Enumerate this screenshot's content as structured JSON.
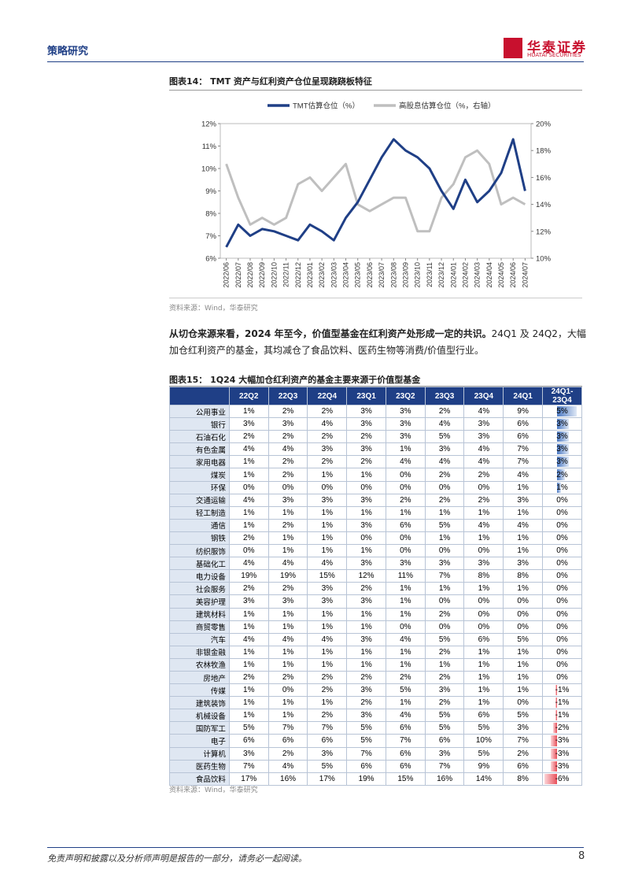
{
  "header": {
    "section": "策略研究",
    "logo_cn": "华泰证券",
    "logo_en": "HUATAI SECURITIES"
  },
  "chart_data": {
    "type": "line",
    "title": "图表14： TMT 资产与红利资产仓位呈现跷跷板特征",
    "categories": [
      "2022/06",
      "2022/07",
      "2022/08",
      "2022/09",
      "2022/10",
      "2022/11",
      "2022/12",
      "2023/01",
      "2023/02",
      "2023/03",
      "2023/04",
      "2023/05",
      "2023/06",
      "2023/07",
      "2023/08",
      "2023/09",
      "2023/10",
      "2023/11",
      "2023/12",
      "2024/01",
      "2024/02",
      "2024/03",
      "2024/04",
      "2024/05",
      "2024/06",
      "2024/07"
    ],
    "series": [
      {
        "name": "TMT估算仓位（%）",
        "color": "#1f3f86",
        "values": [
          6.5,
          7.5,
          7.0,
          7.3,
          7.2,
          7.0,
          6.8,
          7.5,
          7.2,
          6.8,
          7.8,
          8.5,
          9.5,
          10.5,
          11.3,
          10.8,
          10.5,
          10.0,
          9.0,
          8.2,
          9.5,
          8.5,
          9.0,
          9.8,
          11.3,
          9.0
        ]
      },
      {
        "name": "高股息估算仓位（%，右轴）",
        "color": "#bfbfbf",
        "axis": "y2",
        "values": [
          17,
          14.5,
          12.5,
          13,
          12.5,
          13,
          15.5,
          16,
          15,
          16,
          17,
          14,
          13.5,
          14,
          14.5,
          14.5,
          12,
          12,
          14.5,
          15.5,
          17.5,
          18,
          17,
          14,
          14.5,
          14
        ]
      }
    ],
    "ylim": [
      6,
      12
    ],
    "yticks": [
      {
        "value": 6,
        "label": "6%"
      },
      {
        "value": 7,
        "label": "7%"
      },
      {
        "value": 8,
        "label": "8%"
      },
      {
        "value": 9,
        "label": "9%"
      },
      {
        "value": 10,
        "label": "10%"
      },
      {
        "value": 11,
        "label": "11%"
      },
      {
        "value": 12,
        "label": "12%"
      }
    ],
    "y2lim": [
      10,
      20
    ],
    "y2ticks": [
      {
        "value": 10,
        "label": "10%"
      },
      {
        "value": 12,
        "label": "12%"
      },
      {
        "value": 14,
        "label": "14%"
      },
      {
        "value": 16,
        "label": "16%"
      },
      {
        "value": 18,
        "label": "18%"
      },
      {
        "value": 20,
        "label": "20%"
      }
    ],
    "legend": "top",
    "source": "资料来源：Wind，华泰研究"
  },
  "paragraph": {
    "lead": "从切仓来源来看，2024 年至今，价值型基金在红利资产处形成一定的共识。",
    "body": "24Q1 及 24Q2，大幅加仓红利资产的基金，其均减仓了食品饮料、医药生物等消费/价值型行业。"
  },
  "table": {
    "title": "图表15： 1Q24 大幅加仓红利资产的基金主要来源于价值型基金",
    "columns": [
      "22Q2",
      "22Q3",
      "22Q4",
      "23Q1",
      "23Q2",
      "23Q3",
      "23Q4",
      "24Q1",
      "24Q1-23Q4"
    ],
    "rows": [
      [
        "公用事业",
        "1%",
        "2%",
        "2%",
        "3%",
        "3%",
        "2%",
        "4%",
        "9%",
        "5%"
      ],
      [
        "银行",
        "3%",
        "3%",
        "4%",
        "3%",
        "3%",
        "4%",
        "3%",
        "6%",
        "3%"
      ],
      [
        "石油石化",
        "2%",
        "2%",
        "2%",
        "2%",
        "3%",
        "5%",
        "3%",
        "6%",
        "3%"
      ],
      [
        "有色金属",
        "4%",
        "4%",
        "3%",
        "3%",
        "1%",
        "3%",
        "4%",
        "7%",
        "3%"
      ],
      [
        "家用电器",
        "1%",
        "2%",
        "2%",
        "2%",
        "4%",
        "4%",
        "4%",
        "7%",
        "3%"
      ],
      [
        "煤炭",
        "1%",
        "2%",
        "1%",
        "1%",
        "0%",
        "2%",
        "2%",
        "4%",
        "2%"
      ],
      [
        "环保",
        "0%",
        "0%",
        "0%",
        "0%",
        "0%",
        "0%",
        "0%",
        "1%",
        "1%"
      ],
      [
        "交通运输",
        "4%",
        "3%",
        "3%",
        "3%",
        "2%",
        "2%",
        "2%",
        "3%",
        "0%"
      ],
      [
        "轻工制造",
        "1%",
        "1%",
        "1%",
        "1%",
        "1%",
        "1%",
        "1%",
        "1%",
        "0%"
      ],
      [
        "通信",
        "1%",
        "2%",
        "1%",
        "3%",
        "6%",
        "5%",
        "4%",
        "4%",
        "0%"
      ],
      [
        "钢铁",
        "2%",
        "1%",
        "1%",
        "0%",
        "0%",
        "1%",
        "1%",
        "1%",
        "0%"
      ],
      [
        "纺织服饰",
        "0%",
        "1%",
        "1%",
        "1%",
        "0%",
        "0%",
        "0%",
        "1%",
        "0%"
      ],
      [
        "基础化工",
        "4%",
        "4%",
        "4%",
        "3%",
        "3%",
        "3%",
        "3%",
        "3%",
        "0%"
      ],
      [
        "电力设备",
        "19%",
        "19%",
        "15%",
        "12%",
        "11%",
        "7%",
        "8%",
        "8%",
        "0%"
      ],
      [
        "社会服务",
        "2%",
        "2%",
        "3%",
        "2%",
        "1%",
        "1%",
        "1%",
        "1%",
        "0%"
      ],
      [
        "美容护理",
        "3%",
        "3%",
        "3%",
        "3%",
        "1%",
        "0%",
        "0%",
        "0%",
        "0%"
      ],
      [
        "建筑材料",
        "1%",
        "1%",
        "1%",
        "1%",
        "1%",
        "2%",
        "0%",
        "0%",
        "0%"
      ],
      [
        "商贸零售",
        "1%",
        "1%",
        "1%",
        "1%",
        "0%",
        "0%",
        "0%",
        "0%",
        "0%"
      ],
      [
        "汽车",
        "4%",
        "4%",
        "4%",
        "3%",
        "4%",
        "5%",
        "6%",
        "5%",
        "0%"
      ],
      [
        "非银金融",
        "1%",
        "1%",
        "1%",
        "1%",
        "1%",
        "2%",
        "1%",
        "1%",
        "0%"
      ],
      [
        "农林牧渔",
        "1%",
        "1%",
        "1%",
        "1%",
        "1%",
        "1%",
        "1%",
        "1%",
        "0%"
      ],
      [
        "房地产",
        "2%",
        "2%",
        "2%",
        "2%",
        "2%",
        "2%",
        "1%",
        "1%",
        "0%"
      ],
      [
        "传媒",
        "1%",
        "0%",
        "2%",
        "3%",
        "5%",
        "3%",
        "1%",
        "1%",
        "-1%"
      ],
      [
        "建筑装饰",
        "1%",
        "1%",
        "1%",
        "2%",
        "1%",
        "2%",
        "1%",
        "0%",
        "-1%"
      ],
      [
        "机械设备",
        "1%",
        "1%",
        "2%",
        "3%",
        "4%",
        "5%",
        "6%",
        "5%",
        "-1%"
      ],
      [
        "国防军工",
        "5%",
        "7%",
        "7%",
        "5%",
        "6%",
        "5%",
        "5%",
        "3%",
        "-2%"
      ],
      [
        "电子",
        "6%",
        "6%",
        "6%",
        "5%",
        "7%",
        "6%",
        "10%",
        "7%",
        "-3%"
      ],
      [
        "计算机",
        "3%",
        "2%",
        "3%",
        "7%",
        "6%",
        "3%",
        "5%",
        "2%",
        "-3%"
      ],
      [
        "医药生物",
        "7%",
        "4%",
        "5%",
        "6%",
        "6%",
        "7%",
        "9%",
        "6%",
        "-3%"
      ],
      [
        "食品饮料",
        "17%",
        "16%",
        "17%",
        "19%",
        "15%",
        "16%",
        "14%",
        "8%",
        "-6%"
      ]
    ],
    "source": "资料来源：Wind，华泰研究"
  },
  "footer": {
    "disclaimer": "免责声明和披露以及分析师声明是报告的一部分，请务必一起阅读。",
    "page": "8"
  }
}
